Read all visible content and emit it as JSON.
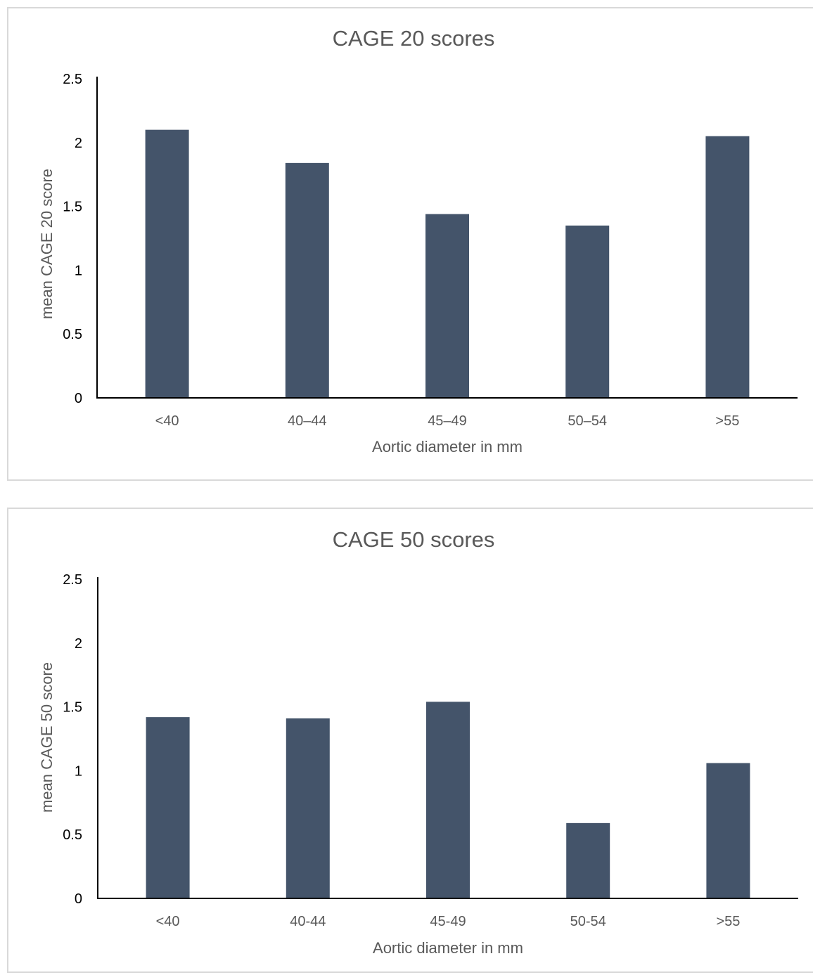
{
  "chart_data": [
    {
      "type": "bar",
      "title": "CAGE 20 scores",
      "xlabel": "Aortic diameter in mm",
      "ylabel": "mean CAGE 20 score",
      "categories": [
        "<40",
        "40–44",
        "45–49",
        "50–54",
        ">55"
      ],
      "values": [
        2.1,
        1.84,
        1.44,
        1.35,
        2.05
      ],
      "ylim": [
        0,
        2.5
      ],
      "yticks": [
        "0",
        "0.5",
        "1",
        "1.5",
        "2",
        "2.5"
      ],
      "grid": false,
      "bar_color": "#44546a"
    },
    {
      "type": "bar",
      "title": "CAGE 50 scores",
      "xlabel": "Aortic diameter in mm",
      "ylabel": "mean CAGE 50 score",
      "categories": [
        "<40",
        "40-44",
        "45-49",
        "50-54",
        ">55"
      ],
      "values": [
        1.42,
        1.41,
        1.54,
        0.59,
        1.06
      ],
      "ylim": [
        0,
        2.5
      ],
      "yticks": [
        "0",
        "0.5",
        "1",
        "1.5",
        "2",
        "2.5"
      ],
      "grid": false,
      "bar_color": "#44546a"
    }
  ]
}
